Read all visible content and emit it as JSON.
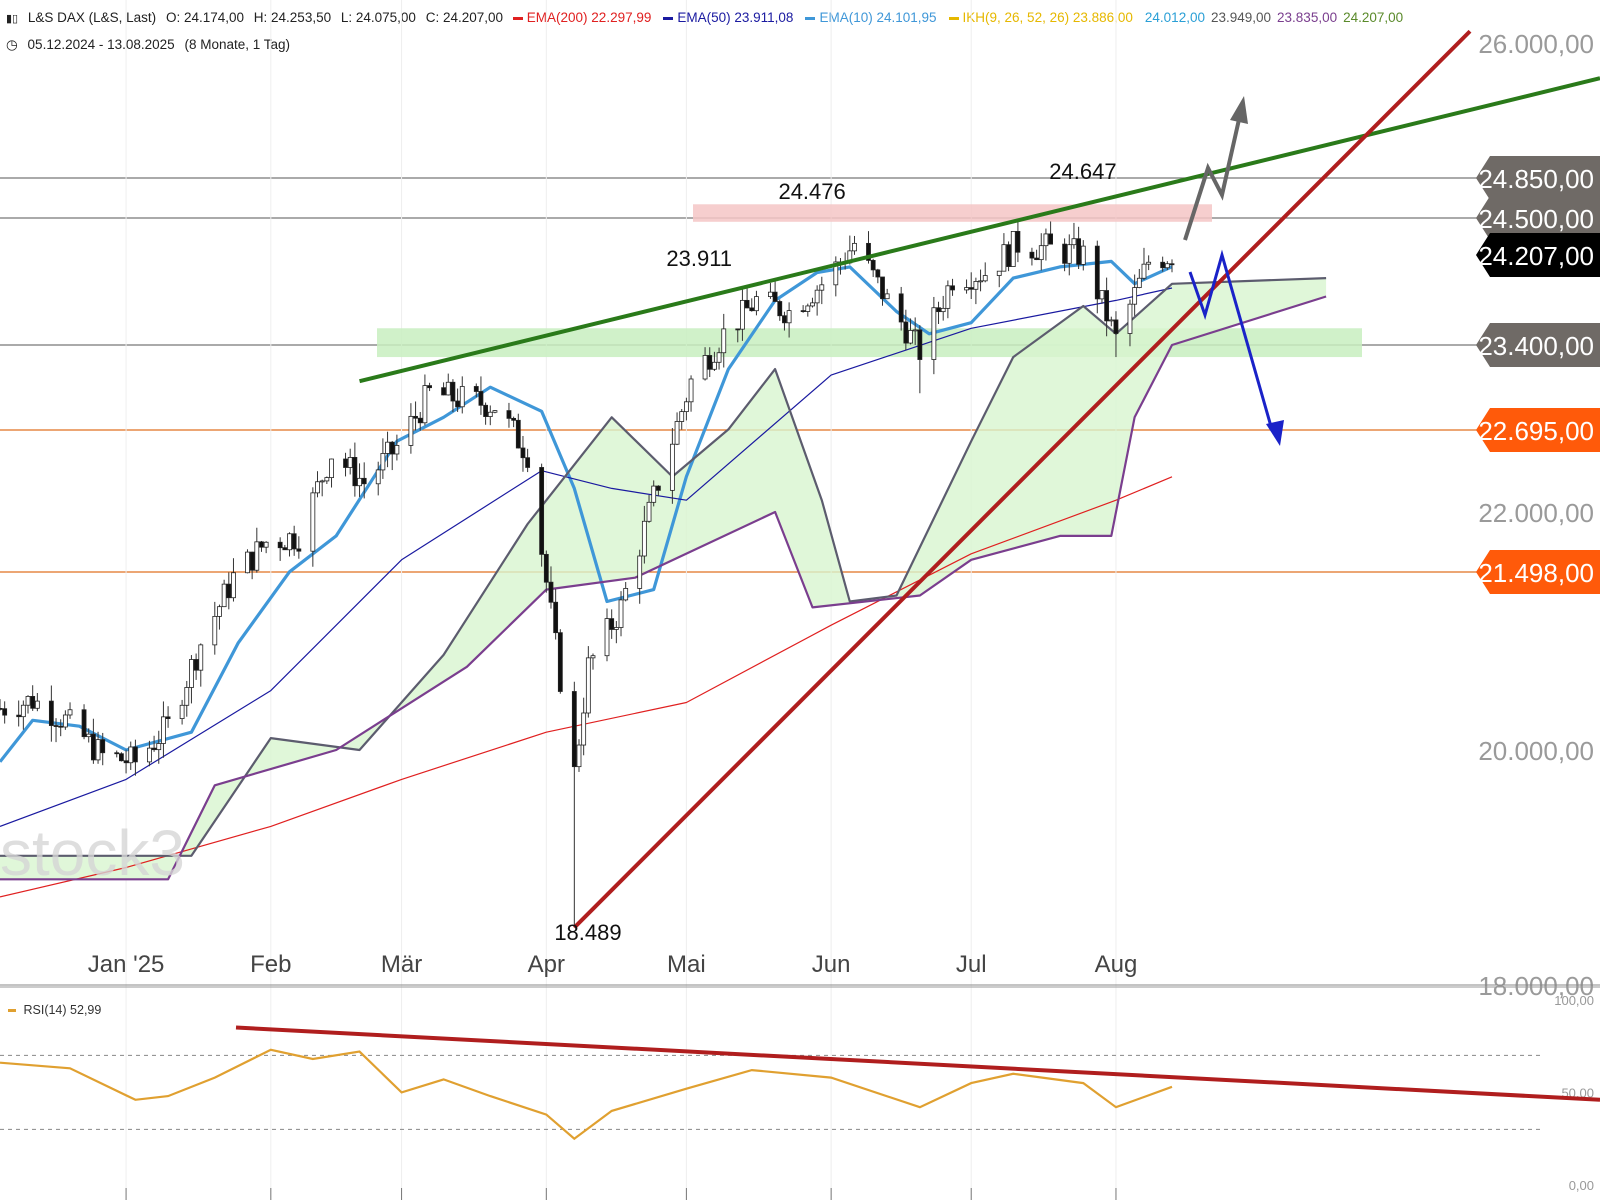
{
  "header": {
    "icon": "candlestick-icon",
    "instrument": "L&S DAX (L&S, Last)",
    "ohlc": {
      "o": "O: 24.174,00",
      "h": "H: 24.253,50",
      "l": "L: 24.075,00",
      "c": "C: 24.207,00"
    },
    "indicators": [
      {
        "name": "EMA(200)",
        "value": "22.297,99",
        "color": "#e02020"
      },
      {
        "name": "EMA(50)",
        "value": "23.911,08",
        "color": "#1a1aa0"
      },
      {
        "name": "EMA(10)",
        "value": "24.101,95",
        "color": "#3f97d8"
      },
      {
        "name": "IKH(9, 26, 52, 26)",
        "value": "23.886,00",
        "color": "#e6b800"
      }
    ],
    "ikh_values": [
      {
        "value": "24.012,00",
        "color": "#2a9fd6"
      },
      {
        "value": "23.949,00",
        "color": "#555555"
      },
      {
        "value": "23.835,00",
        "color": "#7a3e8e"
      },
      {
        "value": "24.207,00",
        "color": "#5a8a2a"
      }
    ],
    "range_icon": "clock-icon",
    "range": "05.12.2024 - 13.08.2025",
    "period": "(8 Monate, 1 Tag)"
  },
  "watermark": "stock3",
  "chart_data": {
    "type": "candlestick",
    "y_axis": {
      "ticks": [
        {
          "value": 26000,
          "label": "26.000,00"
        },
        {
          "value": 22000,
          "label": "22.000,00"
        },
        {
          "value": 20000,
          "label": "20.000,00"
        },
        {
          "value": 18000,
          "label": "18.000,00"
        }
      ],
      "range": [
        18000,
        26100
      ]
    },
    "x_axis": {
      "ticks": [
        {
          "label": "Jan '25",
          "date": "2025-01-01"
        },
        {
          "label": "Feb",
          "date": "2025-02-01"
        },
        {
          "label": "Mär",
          "date": "2025-03-01"
        },
        {
          "label": "Apr",
          "date": "2025-04-01"
        },
        {
          "label": "Mai",
          "date": "2025-05-01"
        },
        {
          "label": "Jun",
          "date": "2025-06-01"
        },
        {
          "label": "Jul",
          "date": "2025-07-01"
        },
        {
          "label": "Aug",
          "date": "2025-08-01"
        }
      ]
    },
    "price_tags": [
      {
        "value": 24850,
        "label": "24.850,00",
        "style": "gray"
      },
      {
        "value": 24500,
        "label": "24.500,00",
        "style": "gray"
      },
      {
        "value": 24207,
        "label": "24.207,00",
        "style": "black"
      },
      {
        "value": 23400,
        "label": "23.400,00",
        "style": "gray"
      },
      {
        "value": 22695,
        "label": "22.695,00",
        "style": "orange"
      },
      {
        "value": 21498,
        "label": "21.498,00",
        "style": "orange"
      }
    ],
    "annotations": [
      {
        "text": "23.911",
        "date": "2025-05-01",
        "value": 23911
      },
      {
        "text": "24.476",
        "date": "2025-05-25",
        "value": 24476
      },
      {
        "text": "24.647",
        "date": "2025-07-22",
        "value": 24647
      },
      {
        "text": "18.489",
        "date": "2025-04-07",
        "value": 18489
      }
    ],
    "price_series": {
      "close": [
        [
          "2024-12-05",
          20350
        ],
        [
          "2024-12-12",
          20420
        ],
        [
          "2024-12-19",
          20250
        ],
        [
          "2024-12-27",
          19950
        ],
        [
          "2025-01-03",
          19900
        ],
        [
          "2025-01-10",
          20200
        ],
        [
          "2025-01-17",
          20900
        ],
        [
          "2025-01-24",
          21450
        ],
        [
          "2025-01-31",
          21750
        ],
        [
          "2025-02-07",
          21800
        ],
        [
          "2025-02-14",
          22500
        ],
        [
          "2025-02-21",
          22250
        ],
        [
          "2025-02-28",
          22550
        ],
        [
          "2025-03-07",
          23000
        ],
        [
          "2025-03-14",
          22950
        ],
        [
          "2025-03-21",
          22900
        ],
        [
          "2025-03-28",
          22500
        ],
        [
          "2025-04-04",
          20600
        ],
        [
          "2025-04-07",
          19800
        ],
        [
          "2025-04-10",
          20700
        ],
        [
          "2025-04-17",
          21200
        ],
        [
          "2025-04-25",
          22250
        ],
        [
          "2025-05-02",
          23100
        ],
        [
          "2025-05-09",
          23500
        ],
        [
          "2025-05-16",
          23800
        ],
        [
          "2025-05-23",
          23700
        ],
        [
          "2025-05-30",
          23950
        ],
        [
          "2025-06-06",
          24300
        ],
        [
          "2025-06-13",
          23800
        ],
        [
          "2025-06-20",
          23350
        ],
        [
          "2025-06-27",
          24000
        ],
        [
          "2025-07-04",
          24050
        ],
        [
          "2025-07-11",
          24300
        ],
        [
          "2025-07-18",
          24250
        ],
        [
          "2025-07-25",
          24200
        ],
        [
          "2025-08-01",
          23450
        ],
        [
          "2025-08-08",
          24150
        ],
        [
          "2025-08-13",
          24207
        ]
      ],
      "low": [
        [
          "2025-04-07",
          18489
        ],
        [
          "2025-07-10",
          24150
        ],
        [
          "2025-06-20",
          23000
        ],
        [
          "2025-08-01",
          23300
        ]
      ]
    },
    "indicator_series": [
      {
        "name": "EMA(10)",
        "color": "#3f97d8",
        "points": [
          [
            "2024-12-05",
            19900
          ],
          [
            "2024-12-12",
            20250
          ],
          [
            "2024-12-22",
            20200
          ],
          [
            "2025-01-01",
            20000
          ],
          [
            "2025-01-15",
            20150
          ],
          [
            "2025-01-25",
            20900
          ],
          [
            "2025-02-05",
            21500
          ],
          [
            "2025-02-15",
            21800
          ],
          [
            "2025-02-28",
            22600
          ],
          [
            "2025-03-10",
            22800
          ],
          [
            "2025-03-20",
            23050
          ],
          [
            "2025-03-31",
            22850
          ],
          [
            "2025-04-07",
            22200
          ],
          [
            "2025-04-14",
            21250
          ],
          [
            "2025-04-24",
            21350
          ],
          [
            "2025-05-01",
            22300
          ],
          [
            "2025-05-10",
            23200
          ],
          [
            "2025-05-20",
            23800
          ],
          [
            "2025-05-29",
            24050
          ],
          [
            "2025-06-05",
            24100
          ],
          [
            "2025-06-15",
            23700
          ],
          [
            "2025-06-22",
            23500
          ],
          [
            "2025-07-01",
            23600
          ],
          [
            "2025-07-10",
            24000
          ],
          [
            "2025-07-20",
            24100
          ],
          [
            "2025-07-31",
            24150
          ],
          [
            "2025-08-05",
            23950
          ],
          [
            "2025-08-13",
            24102
          ]
        ]
      },
      {
        "name": "EMA(50)",
        "color": "#1a1aa0",
        "points": [
          [
            "2024-12-05",
            19350
          ],
          [
            "2025-01-01",
            19750
          ],
          [
            "2025-02-01",
            20500
          ],
          [
            "2025-03-01",
            21600
          ],
          [
            "2025-03-31",
            22350
          ],
          [
            "2025-04-15",
            22200
          ],
          [
            "2025-05-01",
            22100
          ],
          [
            "2025-06-01",
            23150
          ],
          [
            "2025-07-01",
            23550
          ],
          [
            "2025-08-01",
            23800
          ],
          [
            "2025-08-13",
            23911
          ]
        ]
      },
      {
        "name": "EMA(200)",
        "color": "#e02020",
        "points": [
          [
            "2024-12-05",
            18750
          ],
          [
            "2025-01-01",
            19000
          ],
          [
            "2025-02-01",
            19350
          ],
          [
            "2025-03-01",
            19750
          ],
          [
            "2025-04-01",
            20150
          ],
          [
            "2025-05-01",
            20400
          ],
          [
            "2025-06-01",
            21050
          ],
          [
            "2025-07-01",
            21650
          ],
          [
            "2025-08-01",
            22100
          ],
          [
            "2025-08-13",
            22298
          ]
        ]
      },
      {
        "name": "IKH Senkou A",
        "color": "#5c5c6e",
        "points": [
          [
            "2024-12-05",
            19100
          ],
          [
            "2025-01-15",
            19100
          ],
          [
            "2025-02-01",
            20100
          ],
          [
            "2025-02-20",
            20000
          ],
          [
            "2025-03-10",
            20800
          ],
          [
            "2025-03-28",
            21900
          ],
          [
            "2025-04-15",
            22800
          ],
          [
            "2025-04-28",
            22300
          ],
          [
            "2025-05-10",
            22700
          ],
          [
            "2025-05-20",
            23200
          ],
          [
            "2025-05-30",
            22100
          ],
          [
            "2025-06-05",
            21250
          ],
          [
            "2025-06-15",
            21300
          ],
          [
            "2025-07-01",
            22600
          ],
          [
            "2025-07-10",
            23300
          ],
          [
            "2025-07-25",
            23750
          ],
          [
            "2025-08-01",
            23500
          ],
          [
            "2025-08-13",
            23949
          ],
          [
            "2025-09-15",
            24000
          ]
        ]
      },
      {
        "name": "IKH Senkou B",
        "color": "#7a3e8e",
        "points": [
          [
            "2024-12-05",
            18900
          ],
          [
            "2025-01-10",
            18900
          ],
          [
            "2025-01-20",
            19700
          ],
          [
            "2025-02-15",
            20000
          ],
          [
            "2025-03-15",
            20700
          ],
          [
            "2025-04-01",
            21350
          ],
          [
            "2025-04-20",
            21450
          ],
          [
            "2025-05-20",
            22000
          ],
          [
            "2025-05-28",
            21200
          ],
          [
            "2025-06-20",
            21300
          ],
          [
            "2025-07-01",
            21600
          ],
          [
            "2025-07-20",
            21800
          ],
          [
            "2025-07-31",
            21800
          ],
          [
            "2025-08-05",
            22800
          ],
          [
            "2025-08-13",
            23400
          ],
          [
            "2025-09-15",
            23835
          ]
        ]
      }
    ],
    "zones": [
      {
        "name": "support",
        "from": 23300,
        "to": 23550,
        "color": "#c8efc0"
      },
      {
        "name": "resistance",
        "from": 24470,
        "to": 24620,
        "color": "#f5c6c6"
      }
    ],
    "rsi": {
      "label": "RSI(14)",
      "value": "52,99",
      "y_ticks": [
        {
          "value": 100,
          "label": "100,00"
        },
        {
          "value": 50,
          "label": "50,00"
        },
        {
          "value": 0,
          "label": "0,00"
        }
      ],
      "levels": [
        70,
        30
      ],
      "points": [
        [
          "2024-12-05",
          66
        ],
        [
          "2024-12-20",
          63
        ],
        [
          "2025-01-03",
          46
        ],
        [
          "2025-01-10",
          48
        ],
        [
          "2025-01-20",
          58
        ],
        [
          "2025-02-01",
          73
        ],
        [
          "2025-02-10",
          68
        ],
        [
          "2025-02-20",
          72
        ],
        [
          "2025-03-01",
          50
        ],
        [
          "2025-03-10",
          57
        ],
        [
          "2025-03-20",
          48
        ],
        [
          "2025-04-01",
          38
        ],
        [
          "2025-04-07",
          25
        ],
        [
          "2025-04-15",
          40
        ],
        [
          "2025-05-01",
          52
        ],
        [
          "2025-05-15",
          62
        ],
        [
          "2025-06-01",
          58
        ],
        [
          "2025-06-20",
          42
        ],
        [
          "2025-07-01",
          55
        ],
        [
          "2025-07-10",
          60
        ],
        [
          "2025-07-25",
          55
        ],
        [
          "2025-08-01",
          42
        ],
        [
          "2025-08-13",
          53
        ]
      ]
    }
  }
}
